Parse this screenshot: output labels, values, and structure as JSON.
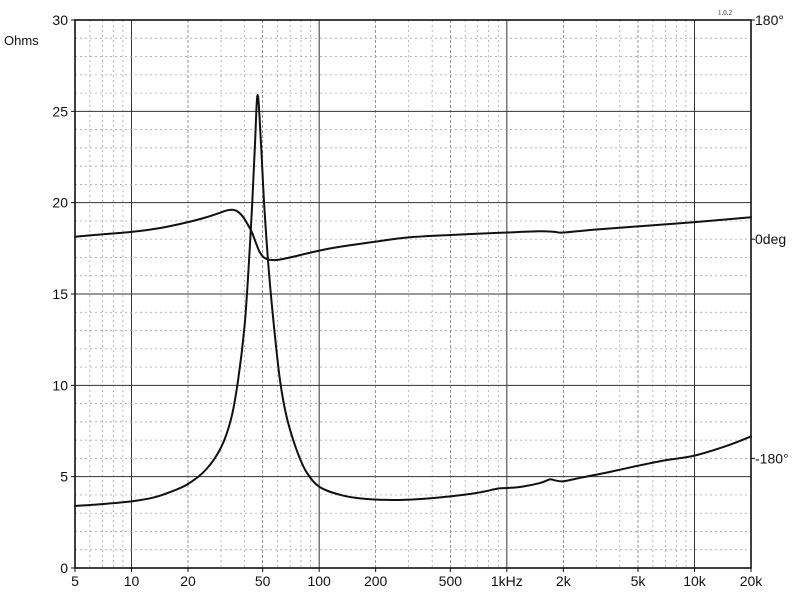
{
  "chart_data": {
    "type": "line",
    "title": "",
    "version": "1.0.2",
    "x_scale": "log",
    "xlim": [
      5,
      20000
    ],
    "ylabel": "Ohms",
    "ylim": [
      0,
      30
    ],
    "y_ticks": [
      0,
      5,
      10,
      15,
      20,
      25,
      30
    ],
    "x_ticks": [
      {
        "value": 5,
        "label": "5"
      },
      {
        "value": 10,
        "label": "10"
      },
      {
        "value": 20,
        "label": "20"
      },
      {
        "value": 50,
        "label": "50"
      },
      {
        "value": 100,
        "label": "100"
      },
      {
        "value": 200,
        "label": "200"
      },
      {
        "value": 500,
        "label": "500"
      },
      {
        "value": 1000,
        "label": "1kHz"
      },
      {
        "value": 2000,
        "label": "2k"
      },
      {
        "value": 5000,
        "label": "5k"
      },
      {
        "value": 10000,
        "label": "10k"
      },
      {
        "value": 20000,
        "label": "20k"
      }
    ],
    "right_axis": {
      "ylim": [
        -270,
        180
      ],
      "ticks": [
        {
          "value": 180,
          "label": "180°"
        },
        {
          "value": 0,
          "label": "0deg"
        },
        {
          "value": -180,
          "label": "-180°"
        }
      ]
    },
    "grid": true,
    "series": [
      {
        "axis": "left",
        "x": [
          5,
          7,
          10,
          13,
          16,
          20,
          25,
          30,
          34,
          37,
          40,
          42,
          44,
          45.5,
          47,
          49,
          51,
          54,
          58,
          62,
          67,
          75,
          85,
          100,
          130,
          170,
          250,
          350,
          500,
          700,
          900,
          1000,
          1200,
          1500,
          1700,
          1800,
          2000,
          2500,
          3500,
          5000,
          7000,
          10000,
          15000,
          20000
        ],
        "values": [
          3.4,
          3.5,
          3.65,
          3.85,
          4.15,
          4.6,
          5.4,
          6.6,
          8.2,
          10.3,
          13.2,
          16.3,
          20.0,
          23.2,
          25.9,
          23.2,
          19.8,
          16.2,
          12.8,
          10.2,
          8.3,
          6.6,
          5.3,
          4.45,
          4.0,
          3.8,
          3.72,
          3.78,
          3.92,
          4.12,
          4.35,
          4.38,
          4.45,
          4.65,
          4.85,
          4.8,
          4.75,
          4.95,
          5.25,
          5.6,
          5.9,
          6.15,
          6.7,
          7.2
        ]
      },
      {
        "axis": "right",
        "x": [
          5,
          7,
          10,
          14,
          20,
          25,
          30,
          33,
          36,
          39,
          42,
          44,
          46,
          48,
          50,
          52,
          55,
          60,
          70,
          90,
          120,
          200,
          300,
          500,
          1000,
          1500,
          1800,
          2000,
          3000,
          5000,
          10000,
          20000
        ],
        "values": [
          2,
          4,
          6,
          9,
          14,
          18,
          22,
          24,
          23.5,
          19,
          11,
          5,
          -3,
          -10,
          -14,
          -16,
          -17,
          -17,
          -15,
          -11,
          -7,
          -2,
          1.5,
          3.5,
          5.5,
          6.5,
          6,
          5.5,
          8,
          10.5,
          14,
          18
        ]
      }
    ]
  }
}
